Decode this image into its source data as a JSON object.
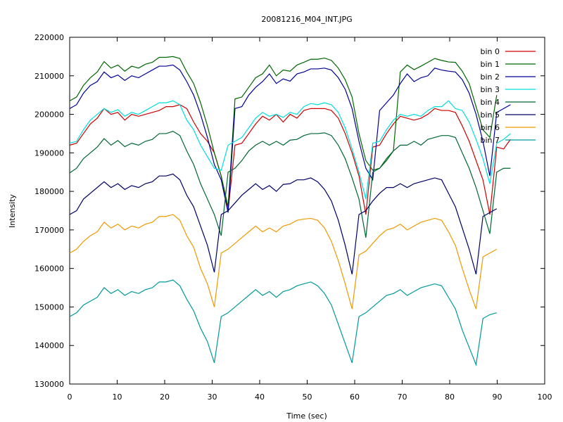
{
  "chart_data": {
    "type": "line",
    "title": "20081216_M04_INT.JPG",
    "xlabel": "Time (sec)",
    "ylabel": "Intensity",
    "xlim": [
      0,
      100
    ],
    "ylim": [
      130000,
      220000
    ],
    "x_ticks": [
      0,
      10,
      20,
      30,
      40,
      50,
      60,
      70,
      80,
      90,
      100
    ],
    "y_ticks": [
      130000,
      140000,
      150000,
      160000,
      170000,
      180000,
      190000,
      200000,
      210000,
      220000
    ],
    "legend_position": "top-right",
    "grid": false,
    "series": [
      {
        "name": "bin 0",
        "color": "#cc0000",
        "values": [
          192000,
          192500,
          195000,
          197500,
          199000,
          201500,
          200000,
          200500,
          198500,
          200000,
          199500,
          200000,
          200500,
          201000,
          202000,
          202000,
          202500,
          201500,
          198000,
          195000,
          193000,
          190000,
          184000,
          175000,
          192000,
          192500,
          195000,
          197500,
          199500,
          198500,
          200000,
          198000,
          200000,
          199000,
          201000,
          201500,
          201500,
          201500,
          201000,
          199000,
          195000,
          190000,
          184000,
          174000,
          191500,
          192000,
          195000,
          197500,
          199500,
          199000,
          198500,
          199000,
          200000,
          201500,
          201000,
          201000,
          200500,
          197000,
          193000,
          188000,
          183000,
          174000,
          191500,
          191000,
          193500
        ]
      },
      {
        "name": "bin 1",
        "color": "#006600",
        "values": [
          203500,
          204500,
          207500,
          209500,
          211000,
          213700,
          212000,
          212800,
          211200,
          212500,
          212000,
          213000,
          213500,
          214800,
          214800,
          215000,
          214500,
          211000,
          208000,
          203000,
          197000,
          190000,
          184000,
          176000,
          204000,
          204500,
          207000,
          209500,
          210500,
          212800,
          210000,
          211500,
          211200,
          212800,
          213500,
          214300,
          214300,
          214600,
          214000,
          212000,
          209000,
          204500,
          195000,
          188000,
          185500,
          186000,
          188000,
          190500,
          211000,
          212800,
          211600,
          212500,
          213500,
          214500,
          214000,
          213600,
          213500,
          211200,
          208000,
          202000,
          196000,
          194000,
          205000
        ]
      },
      {
        "name": "bin 2",
        "color": "#000099",
        "values": [
          201500,
          202500,
          205500,
          207500,
          208500,
          211000,
          209500,
          210200,
          208800,
          210000,
          209500,
          210500,
          211500,
          212500,
          212500,
          212800,
          211500,
          208500,
          205000,
          200000,
          194000,
          187000,
          183000,
          174500,
          201500,
          202000,
          205000,
          207000,
          208500,
          210500,
          208000,
          209200,
          208600,
          210500,
          211000,
          211800,
          211800,
          212000,
          211500,
          209500,
          206500,
          201500,
          193000,
          186000,
          183000,
          201000,
          203000,
          205000,
          208000,
          210500,
          208500,
          209500,
          210000,
          212000,
          211500,
          211200,
          211000,
          209000,
          205500,
          200000,
          193000,
          184000,
          200500,
          201500,
          202500
        ]
      },
      {
        "name": "bin 3",
        "color": "#00dddd",
        "values": [
          192500,
          193000,
          196000,
          198500,
          200000,
          201500,
          200500,
          201200,
          199500,
          200500,
          200000,
          201000,
          202000,
          203000,
          203000,
          203500,
          202500,
          198500,
          196000,
          192000,
          189000,
          186000,
          185500,
          192000,
          193000,
          194000,
          196500,
          199000,
          200500,
          199500,
          200000,
          199200,
          200500,
          200000,
          202000,
          202800,
          202500,
          203000,
          202500,
          200500,
          196500,
          191000,
          185000,
          178000,
          192500,
          193000,
          196000,
          198500,
          200000,
          199500,
          200000,
          199500,
          201000,
          202000,
          202000,
          203500,
          201500,
          201000,
          198000,
          193500,
          188500,
          182000,
          192500,
          193500,
          195000
        ]
      },
      {
        "name": "bin 4",
        "color": "#006633",
        "values": [
          184800,
          186000,
          188500,
          190000,
          191500,
          193700,
          192000,
          193200,
          191600,
          192500,
          192000,
          193000,
          193500,
          195000,
          195000,
          195600,
          194500,
          190500,
          187000,
          182000,
          178000,
          174000,
          168500,
          185000,
          186000,
          188000,
          190500,
          192000,
          193000,
          192000,
          193000,
          192000,
          193300,
          193500,
          194500,
          195000,
          195000,
          195200,
          194500,
          192000,
          188500,
          183500,
          178000,
          168000,
          185000,
          186000,
          188500,
          190500,
          192000,
          192000,
          193000,
          192000,
          193500,
          194000,
          194500,
          194500,
          194000,
          190000,
          186000,
          181000,
          175000,
          169000,
          185000,
          186000,
          186000
        ]
      },
      {
        "name": "bin 5",
        "color": "#000066",
        "values": [
          174000,
          175000,
          178000,
          179500,
          181000,
          182500,
          181000,
          182000,
          180500,
          181500,
          181000,
          182000,
          182500,
          184000,
          184000,
          184500,
          183000,
          179000,
          176000,
          171000,
          166000,
          159000,
          174000,
          175000,
          177000,
          179000,
          180500,
          182000,
          180500,
          181500,
          180000,
          181800,
          182000,
          183000,
          183000,
          183500,
          182500,
          180500,
          177500,
          172500,
          166000,
          158500,
          174000,
          175000,
          177500,
          179500,
          181000,
          181000,
          182000,
          181000,
          182000,
          182500,
          183000,
          183500,
          183000,
          179500,
          176000,
          170500,
          165000,
          158500,
          173500,
          174500,
          175500
        ]
      },
      {
        "name": "bin 6",
        "color": "#ee9900",
        "values": [
          164000,
          165000,
          167000,
          168500,
          169500,
          172000,
          170500,
          171500,
          170000,
          171000,
          170500,
          171500,
          172000,
          173500,
          173500,
          174000,
          172500,
          168500,
          165500,
          160000,
          156000,
          150000,
          164000,
          165000,
          166500,
          168000,
          169500,
          171000,
          169500,
          170500,
          169500,
          171000,
          171500,
          172500,
          172800,
          173000,
          172500,
          170500,
          167000,
          162000,
          156000,
          149500,
          163500,
          164500,
          166500,
          168500,
          170000,
          170500,
          171500,
          170000,
          171000,
          172000,
          172500,
          173000,
          172500,
          169500,
          166000,
          160000,
          154500,
          149500,
          163000,
          164000,
          165000
        ]
      },
      {
        "name": "bin 7",
        "color": "#009999",
        "values": [
          147500,
          148500,
          150500,
          151500,
          152500,
          155000,
          153500,
          154500,
          153000,
          154000,
          153500,
          154500,
          155000,
          156500,
          156500,
          157000,
          155500,
          152000,
          149000,
          144500,
          141000,
          135500,
          147500,
          148500,
          150000,
          151500,
          153000,
          154500,
          153000,
          154000,
          152500,
          154000,
          154500,
          155500,
          156000,
          156500,
          155500,
          153500,
          150500,
          145500,
          140500,
          135500,
          147500,
          148500,
          150000,
          151500,
          153000,
          153500,
          154500,
          153000,
          154000,
          155000,
          155500,
          156000,
          155500,
          152500,
          149500,
          144000,
          139500,
          135000,
          147000,
          148000,
          148500
        ]
      }
    ]
  }
}
